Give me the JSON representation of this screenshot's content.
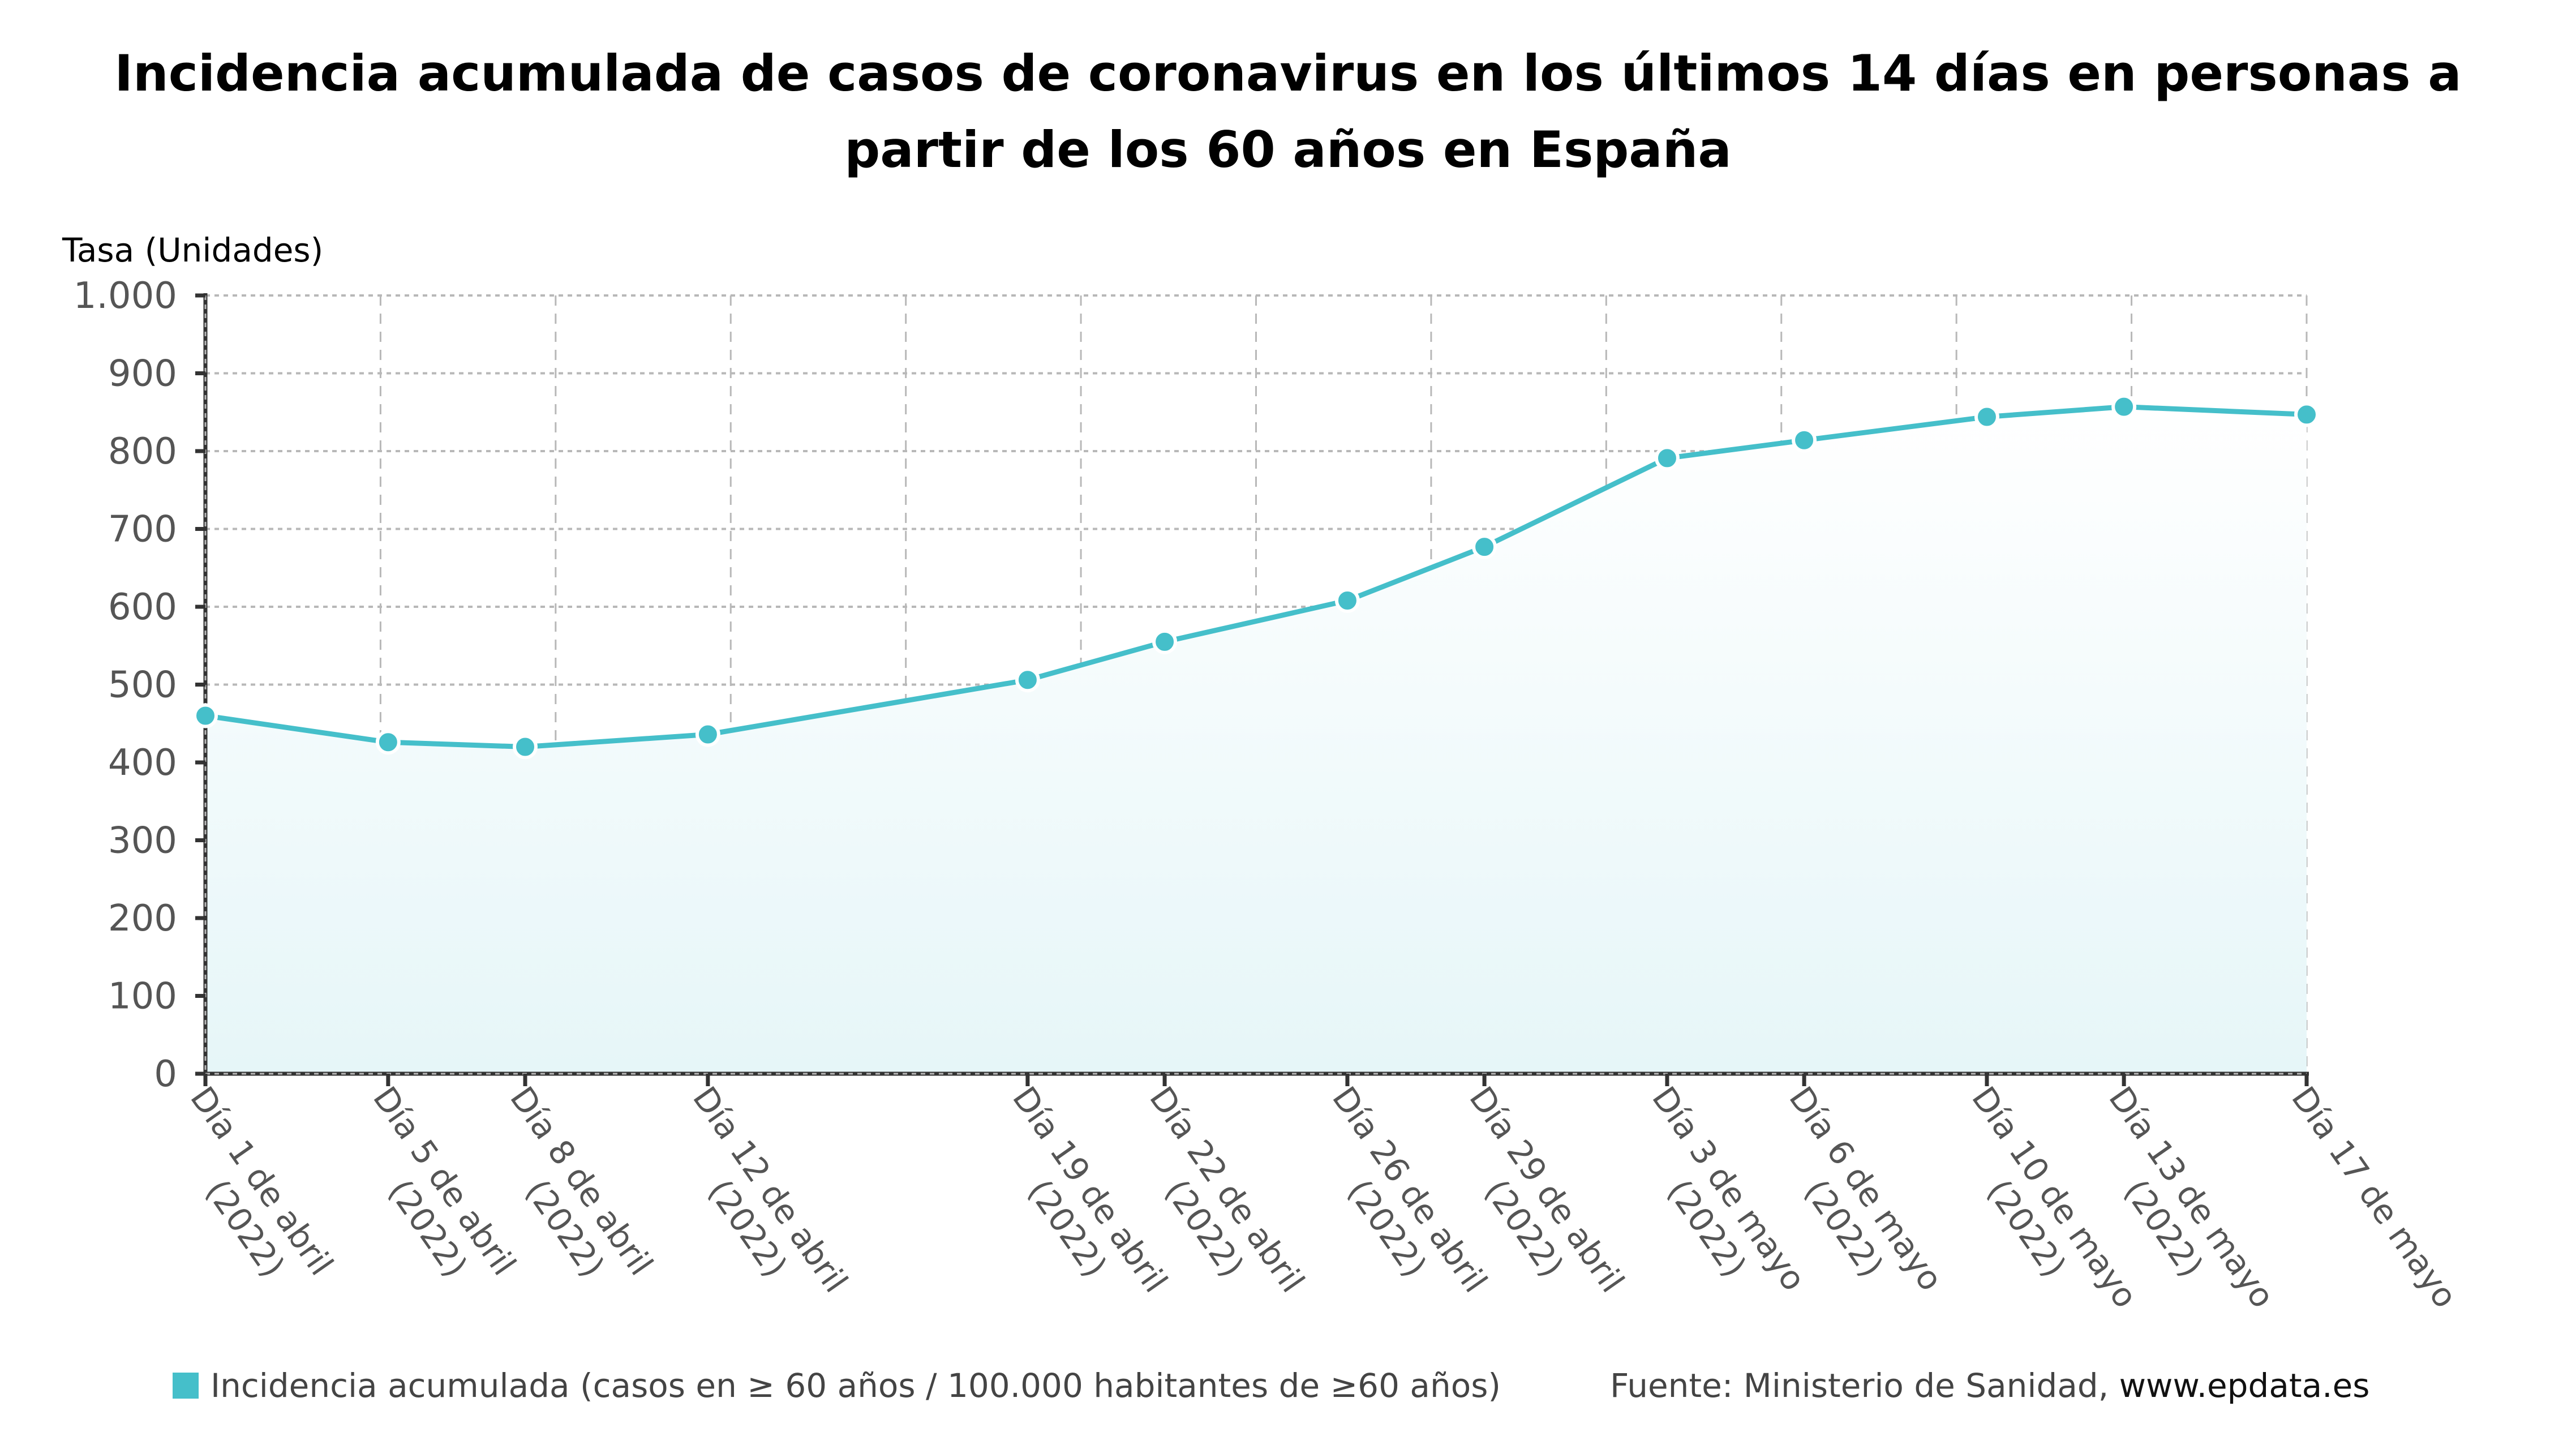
{
  "chart_data": {
    "type": "line",
    "title_lines": [
      "Incidencia acumulada de casos de coronavirus en los últimos 14 días en personas a",
      "partir de los 60 años en España"
    ],
    "ylabel": "Tasa (Unidades)",
    "xlabel": "",
    "ylim": [
      0,
      1000
    ],
    "yticks": [
      0,
      100,
      200,
      300,
      400,
      500,
      600,
      700,
      800,
      900,
      1000
    ],
    "ytick_labels": [
      "0",
      "100",
      "200",
      "300",
      "400",
      "500",
      "600",
      "700",
      "800",
      "900",
      "1.000"
    ],
    "x_axis_type": "time",
    "x_range_days": [
      0,
      46
    ],
    "x_days_from_start": [
      0,
      4,
      7,
      11,
      18,
      21,
      25,
      28,
      32,
      35,
      39,
      42,
      46
    ],
    "categories": [
      [
        "Día 1 de abril",
        "(2022)"
      ],
      [
        "Día 5 de abril",
        "(2022)"
      ],
      [
        "Día 8 de abril",
        "(2022)"
      ],
      [
        "Día 12 de abril",
        "(2022)"
      ],
      [
        "Día 19 de abril",
        "(2022)"
      ],
      [
        "Día 22 de abril",
        "(2022)"
      ],
      [
        "Día 26 de abril",
        "(2022)"
      ],
      [
        "Día 29 de abril",
        "(2022)"
      ],
      [
        "Día 3 de mayo",
        "(2022)"
      ],
      [
        "Día 6 de mayo",
        "(2022)"
      ],
      [
        "Día 10 de mayo",
        "(2022)"
      ],
      [
        "Día 13 de mayo",
        "(2022)"
      ],
      [
        "Día 17 de mayo"
      ]
    ],
    "series": [
      {
        "name": "Incidencia acumulada (casos en ≥ 60 años / 100.000 habitantes de ≥60 años)",
        "color": "#45bfca",
        "area_fill": true,
        "values": [
          460,
          426,
          420,
          436,
          506,
          555,
          608,
          677,
          791,
          814,
          844,
          857,
          847
        ]
      }
    ],
    "vertical_grid_divisions": 12,
    "grid": true,
    "legend_position": "bottom-left"
  },
  "footer": {
    "legend_label": "Incidencia acumulada (casos en ≥ 60 años / 100.000 habitantes de ≥60 años)",
    "source_prefix": "Fuente: Ministerio de Sanidad, ",
    "source_site": "www.epdata.es"
  },
  "colors": {
    "accent": "#45bfca",
    "area_top": "#ffffff",
    "area_bottom": "#e6f6f8",
    "text_dark": "#000000",
    "text_gray": "#555555"
  }
}
